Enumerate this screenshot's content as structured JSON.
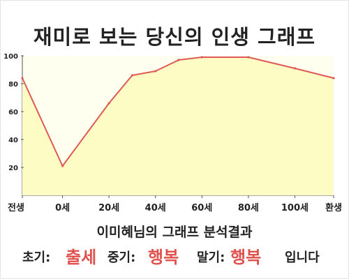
{
  "title": "재미로 보는 당신의 인생 그래프",
  "summary": "이미혜님의 그래프 분석결과",
  "result": {
    "early_label": "초기:",
    "early_value": "출세",
    "mid_label": "중기:",
    "mid_value": "행복",
    "late_label": "말기:",
    "late_value": "행복",
    "suffix": "입니다"
  },
  "colors": {
    "line": "#e05a55",
    "fill": "#fdfcc4",
    "plot_background": "#fffff0",
    "accent": "#e0504c"
  },
  "chart_data": {
    "type": "area",
    "title": "",
    "xlabel": "",
    "ylabel": "",
    "x_tick_labels": [
      "전생",
      "0세",
      "20세",
      "40세",
      "60세",
      "80세",
      "100세",
      "환생"
    ],
    "y_ticks": [
      20,
      40,
      60,
      80,
      100
    ],
    "ylim": [
      0,
      100
    ],
    "grid": false,
    "legend": "none",
    "series": [
      {
        "points": [
          {
            "x": "전생",
            "y": 84
          },
          {
            "x": "0세",
            "y": 21
          },
          {
            "x": "20세",
            "y": 66
          },
          {
            "x": "30세",
            "y": 86
          },
          {
            "x": "40세",
            "y": 89
          },
          {
            "x": "50세",
            "y": 97
          },
          {
            "x": "60세",
            "y": 99
          },
          {
            "x": "80세",
            "y": 99
          },
          {
            "x": "100세",
            "y": 91
          },
          {
            "x": "환생",
            "y": 84
          }
        ]
      }
    ]
  }
}
